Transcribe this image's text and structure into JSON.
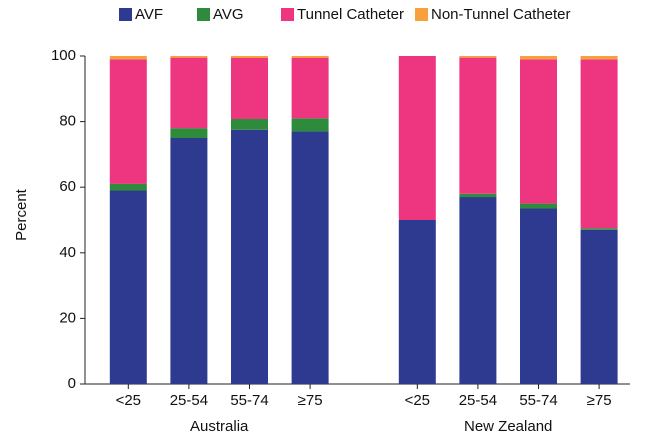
{
  "chart_data": {
    "type": "stacked_bar",
    "y_label": "Percent",
    "groups": [
      "Australia",
      "New Zealand"
    ],
    "categories": [
      "<25",
      "25-54",
      "55-74",
      "≥75",
      "<25",
      "25-54",
      "55-74",
      "≥75"
    ],
    "series": [
      {
        "name": "AVF",
        "color": "#2e3a8f",
        "values": [
          59,
          75,
          77.5,
          77,
          50,
          57,
          53.5,
          47
        ]
      },
      {
        "name": "AVG",
        "color": "#2e8b3c",
        "values": [
          2,
          3,
          3.3,
          4,
          0,
          1,
          1.5,
          0.5
        ]
      },
      {
        "name": "Tunnel Catheter",
        "color": "#ee3580",
        "values": [
          38,
          21.5,
          18.6,
          18.4,
          50,
          41.5,
          44,
          51.5
        ]
      },
      {
        "name": "Non-Tunnel Catheter",
        "color": "#f7a03c",
        "values": [
          1,
          0.5,
          0.6,
          0.6,
          0,
          0.5,
          1,
          1
        ]
      }
    ],
    "ylim": [
      0,
      100
    ],
    "yticks": [
      0,
      20,
      40,
      60,
      80,
      100
    ]
  }
}
